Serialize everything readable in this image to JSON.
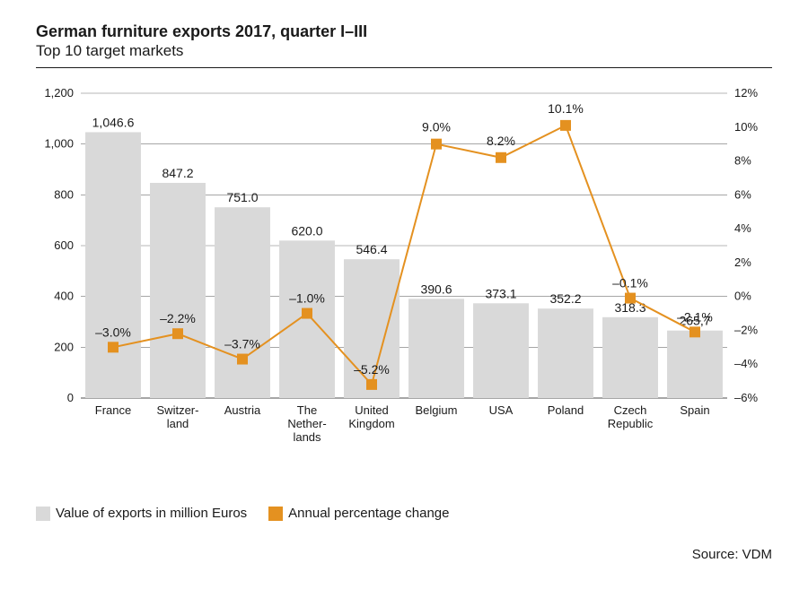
{
  "title": "German furniture exports 2017, quarter I–III",
  "subtitle": "Top 10 target markets",
  "chart": {
    "type": "bar+line",
    "background_color": "#ffffff",
    "grid_color": "#717171",
    "bar_color": "#d9d9d9",
    "line_color": "#e49120",
    "marker_color": "#e49120",
    "marker_size": 12,
    "line_width": 2,
    "bar_width_ratio": 0.86,
    "text_color": "#1a1a1a",
    "title_fontsize": 18,
    "label_fontsize": 13,
    "value_fontsize": 14,
    "y_left": {
      "min": 0,
      "max": 1200,
      "step": 200,
      "ticks": [
        0,
        200,
        400,
        600,
        800,
        1000,
        1200
      ],
      "tick_labels": [
        "0",
        "200",
        "400",
        "600",
        "800",
        "1,000",
        "1,200"
      ]
    },
    "y_right": {
      "min": -6,
      "max": 12,
      "step": 2,
      "ticks": [
        -6,
        -4,
        -2,
        0,
        2,
        4,
        6,
        8,
        10,
        12
      ],
      "tick_labels": [
        "–6%",
        "–4%",
        "–2%",
        "0%",
        "2%",
        "4%",
        "6%",
        "8%",
        "10%",
        "12%"
      ]
    },
    "categories": [
      {
        "label_lines": [
          "France"
        ],
        "value": 1046.6,
        "value_label": "1,046.6",
        "pct": -3.0,
        "pct_label": "–3.0%"
      },
      {
        "label_lines": [
          "Switzer-",
          "land"
        ],
        "value": 847.2,
        "value_label": "847.2",
        "pct": -2.2,
        "pct_label": "–2.2%"
      },
      {
        "label_lines": [
          "Austria"
        ],
        "value": 751.0,
        "value_label": "751.0",
        "pct": -3.7,
        "pct_label": "–3.7%"
      },
      {
        "label_lines": [
          "The",
          "Nether-",
          "lands"
        ],
        "value": 620.0,
        "value_label": "620.0",
        "pct": -1.0,
        "pct_label": "–1.0%"
      },
      {
        "label_lines": [
          "United",
          "Kingdom"
        ],
        "value": 546.4,
        "value_label": "546.4",
        "pct": -5.2,
        "pct_label": "–5.2%"
      },
      {
        "label_lines": [
          "Belgium"
        ],
        "value": 390.6,
        "value_label": "390.6",
        "pct": 9.0,
        "pct_label": "9.0%"
      },
      {
        "label_lines": [
          "USA"
        ],
        "value": 373.1,
        "value_label": "373.1",
        "pct": 8.2,
        "pct_label": "8.2%"
      },
      {
        "label_lines": [
          "Poland"
        ],
        "value": 352.2,
        "value_label": "352.2",
        "pct": 10.1,
        "pct_label": "10.1%"
      },
      {
        "label_lines": [
          "Czech",
          "Republic"
        ],
        "value": 318.3,
        "value_label": "318.3",
        "pct": -0.1,
        "pct_label": "–0.1%"
      },
      {
        "label_lines": [
          "Spain"
        ],
        "value": 265.7,
        "value_label": "265,7",
        "pct": -2.1,
        "pct_label": "–2.1%"
      }
    ]
  },
  "legend": {
    "bars": "Value of exports in million Euros",
    "line": "Annual percentage change"
  },
  "source": "Source: VDM"
}
